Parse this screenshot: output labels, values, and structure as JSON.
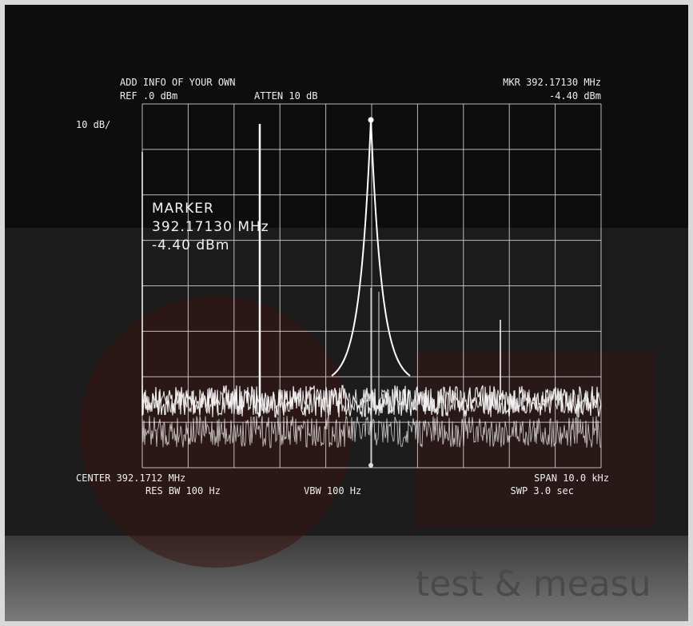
{
  "header": {
    "title": "ADD INFO OF YOUR OWN",
    "reference": "REF .0 dBm",
    "attenuation": "ATTEN 10 dB",
    "marker_frequency": "MKR 392.17130 MHz",
    "marker_level": "-4.40 dBm",
    "scale": "10 dB/"
  },
  "marker_box": {
    "label": "MARKER",
    "frequency": "392.17130 MHz",
    "level": "-4.40 dBm"
  },
  "footer": {
    "center": "CENTER 392.1712 MHz",
    "res_bw": "RES BW 100 Hz",
    "vbw": "VBW 100 Hz",
    "span": "SPAN 10.0 kHz",
    "sweep": "SWP 3.0 sec"
  },
  "watermark": "test & measu"
}
